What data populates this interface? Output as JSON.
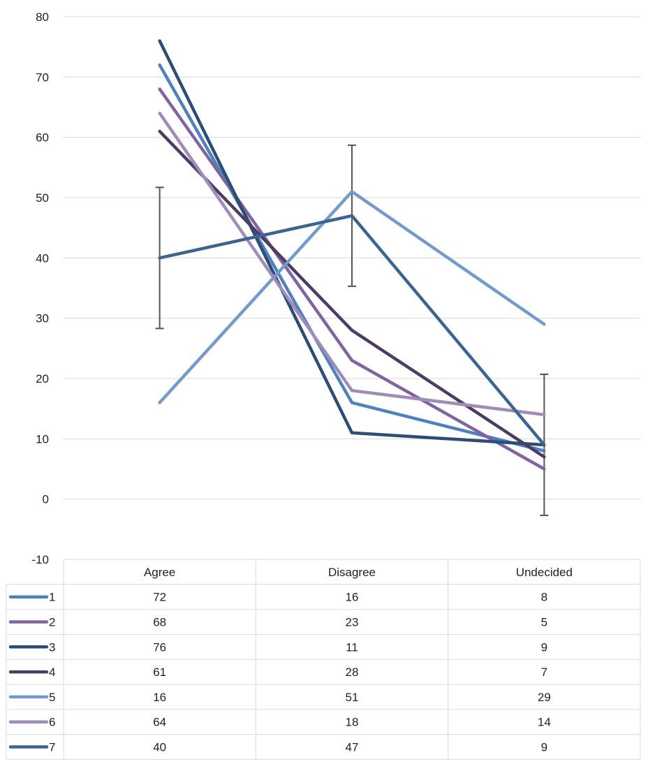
{
  "chart_data": {
    "type": "line",
    "categories": [
      "Agree",
      "Disagree",
      "Undecided"
    ],
    "ylim": [
      -10,
      80
    ],
    "yticks": [
      80,
      70,
      60,
      50,
      40,
      30,
      20,
      10,
      0,
      -10
    ],
    "grid": true,
    "legend": "data-table-below",
    "series": [
      {
        "name": "1",
        "values": [
          72,
          16,
          8
        ],
        "color": "#4f81bd"
      },
      {
        "name": "2",
        "values": [
          68,
          23,
          5
        ],
        "color": "#8064a2"
      },
      {
        "name": "3",
        "values": [
          76,
          11,
          9
        ],
        "color": "#2c4d75"
      },
      {
        "name": "4",
        "values": [
          61,
          28,
          7
        ],
        "color": "#4d3b62"
      },
      {
        "name": "5",
        "values": [
          16,
          51,
          29
        ],
        "color": "#729aca"
      },
      {
        "name": "6",
        "values": [
          64,
          18,
          14
        ],
        "color": "#9f8cb9"
      },
      {
        "name": "7",
        "values": [
          40,
          47,
          9
        ],
        "color": "#3a6592"
      }
    ],
    "error_bars": [
      {
        "category": "Agree",
        "center": 40,
        "low": 28.3,
        "high": 51.7
      },
      {
        "category": "Disagree",
        "center": 47,
        "low": 35.3,
        "high": 58.7
      },
      {
        "category": "Undecided",
        "center": 9,
        "low": -2.7,
        "high": 20.7
      }
    ]
  }
}
